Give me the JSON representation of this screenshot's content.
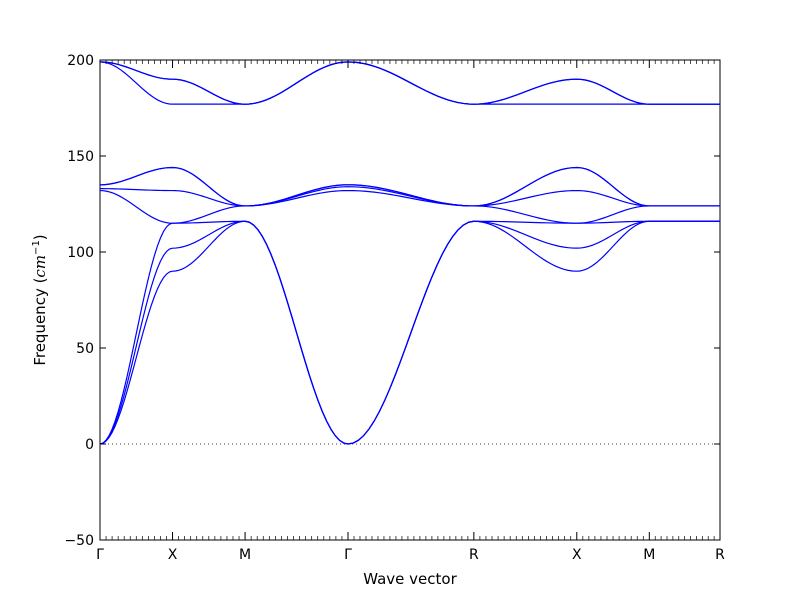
{
  "chart_data": {
    "type": "line",
    "title": "",
    "xlabel": "Wave vector",
    "ylabel_prefix": "Frequency (",
    "ylabel_unit": "cm",
    "ylabel_exp": "−1",
    "ylabel_suffix": ")",
    "ylim": [
      -50,
      200
    ],
    "yticks": [
      -50,
      0,
      50,
      100,
      150,
      200
    ],
    "ytick_labels": [
      "−50",
      "0",
      "50",
      "100",
      "150",
      "200"
    ],
    "grid": false,
    "zero_line": "dotted",
    "line_color": "#0000ff",
    "high_symmetry_points": [
      {
        "label": "Γ",
        "x": 0.0
      },
      {
        "label": "X",
        "x": 0.117
      },
      {
        "label": "M",
        "x": 0.234
      },
      {
        "label": "Γ",
        "x": 0.4
      },
      {
        "label": "R",
        "x": 0.603
      },
      {
        "label": "X",
        "x": 0.769
      },
      {
        "label": "M",
        "x": 0.886
      },
      {
        "label": "R",
        "x": 1.0
      }
    ],
    "series": [
      {
        "values": [
          0,
          90,
          116,
          0,
          116,
          90,
          116,
          116
        ]
      },
      {
        "values": [
          0,
          102,
          116,
          0,
          116,
          102,
          116,
          116
        ]
      },
      {
        "values": [
          0,
          115,
          116,
          0,
          116,
          115,
          116,
          116
        ]
      },
      {
        "values": [
          132,
          115,
          124,
          132,
          124,
          115,
          124,
          124
        ]
      },
      {
        "values": [
          133,
          132,
          124,
          134,
          124,
          132,
          124,
          124
        ]
      },
      {
        "values": [
          135,
          144,
          124,
          135,
          124,
          144,
          124,
          124
        ]
      },
      {
        "values": [
          135,
          144,
          124,
          135,
          124,
          144,
          124,
          124
        ]
      },
      {
        "values": [
          199,
          177,
          177,
          199,
          177,
          177,
          177,
          177
        ]
      },
      {
        "values": [
          199,
          190,
          177,
          199,
          177,
          190,
          177,
          177
        ]
      },
      {
        "values": [
          199,
          190,
          177,
          199,
          177,
          190,
          177,
          177
        ]
      }
    ]
  }
}
